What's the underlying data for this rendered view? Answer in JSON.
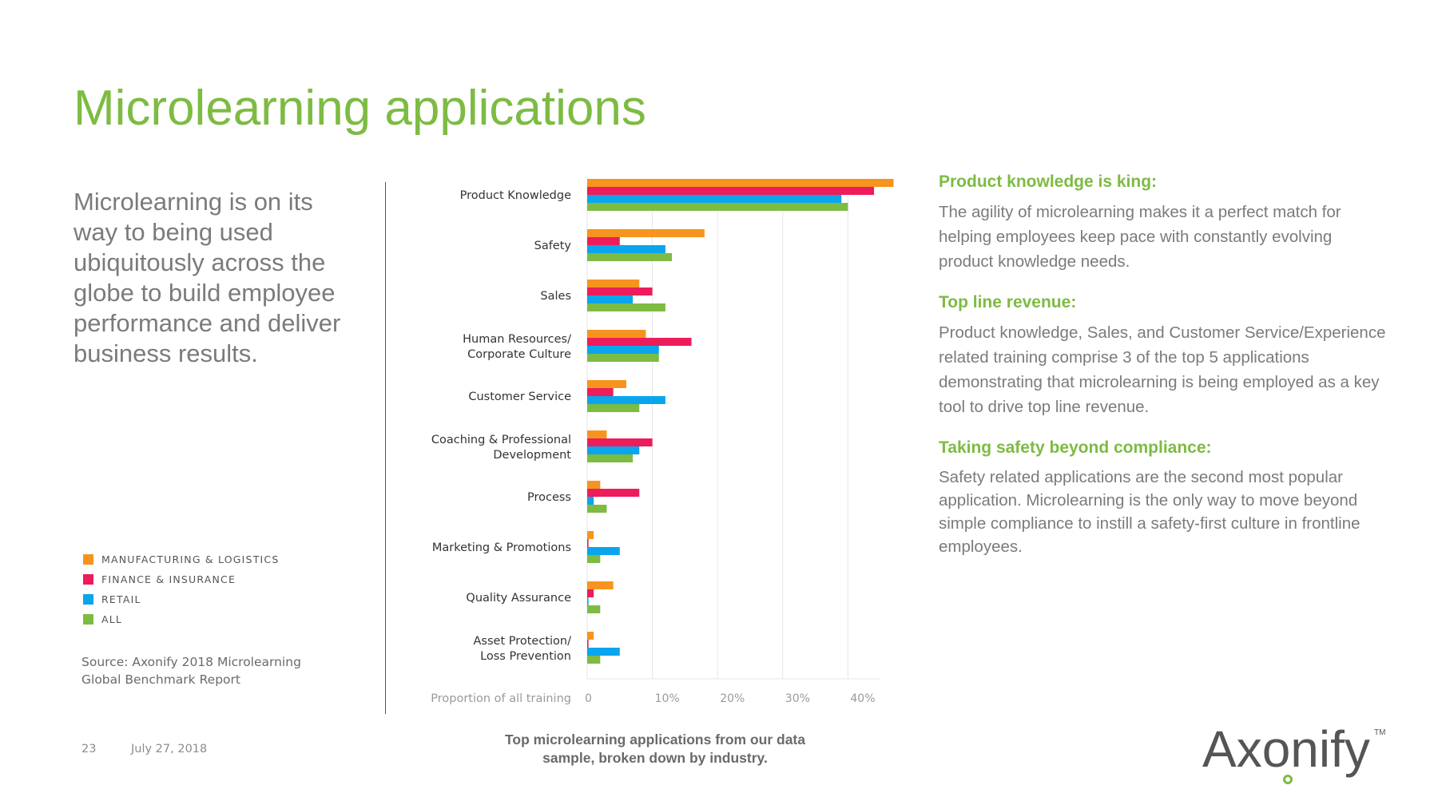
{
  "title": "Microlearning applications",
  "intro": "Microlearning is on its way to being used ubiquitously across the globe to build employee performance and deliver business results.",
  "legend": [
    {
      "label": "MANUFACTURING & LOGISTICS",
      "color": "#f7941d"
    },
    {
      "label": "FINANCE & INSURANCE",
      "color": "#ed1c5b"
    },
    {
      "label": "RETAIL",
      "color": "#0aa5ed"
    },
    {
      "label": "ALL",
      "color": "#7dbb42"
    }
  ],
  "source": "Source: Axonify 2018 Microlearning Global Benchmark Report",
  "footer": {
    "page_number": "23",
    "date": "July 27, 2018"
  },
  "chart_caption": "Top microlearning applications from our data sample, broken down by industry.",
  "chart_data": {
    "type": "bar",
    "orientation": "horizontal",
    "categories": [
      [
        "Product Knowledge"
      ],
      [
        "Safety"
      ],
      [
        "Sales"
      ],
      [
        "Human Resources/",
        "Corporate Culture"
      ],
      [
        "Customer Service"
      ],
      [
        "Coaching & Professional",
        "Development"
      ],
      [
        "Process"
      ],
      [
        "Marketing & Promotions"
      ],
      [
        "Quality Assurance"
      ],
      [
        "Asset Protection/",
        "Loss Prevention"
      ]
    ],
    "series": [
      {
        "name": "MANUFACTURING & LOGISTICS",
        "color": "#f7941d",
        "values": [
          47,
          18,
          8,
          9,
          6,
          3,
          2,
          1,
          4,
          1
        ]
      },
      {
        "name": "FINANCE & INSURANCE",
        "color": "#ed1c5b",
        "values": [
          44,
          5,
          10,
          16,
          4,
          10,
          8,
          0.2,
          1,
          0.2
        ]
      },
      {
        "name": "RETAIL",
        "color": "#0aa5ed",
        "values": [
          39,
          12,
          7,
          11,
          12,
          8,
          1,
          5,
          0.2,
          5
        ]
      },
      {
        "name": "ALL",
        "color": "#7dbb42",
        "values": [
          40,
          13,
          12,
          11,
          8,
          7,
          3,
          2,
          2,
          2
        ]
      }
    ],
    "xlabel": "Proportion of all training",
    "xticks": [
      "0",
      "10%",
      "20%",
      "30%",
      "40%"
    ],
    "xtick_values": [
      0,
      10,
      20,
      30,
      40
    ],
    "xlim": [
      0,
      45
    ],
    "grid": true
  },
  "sections": [
    {
      "heading": "Product knowledge is king:",
      "body": "The agility of microlearning makes it a perfect match for helping employees keep pace with constantly evolving product knowledge needs."
    },
    {
      "heading": "Top line revenue:",
      "body": "Product knowledge, Sales, and Customer Service/Experience related training comprise 3 of the top 5 applications demonstrating that microlearning is being employed as a key tool to drive top line revenue."
    },
    {
      "heading": "Taking safety beyond compliance:",
      "body": "Safety related applications are the second most popular application. Microlearning is the only way to move beyond simple compliance to instill a safety-first culture in frontline employees."
    }
  ],
  "logo": {
    "text": "Axonify",
    "tm": "TM",
    "accent": "#7dbb42"
  }
}
